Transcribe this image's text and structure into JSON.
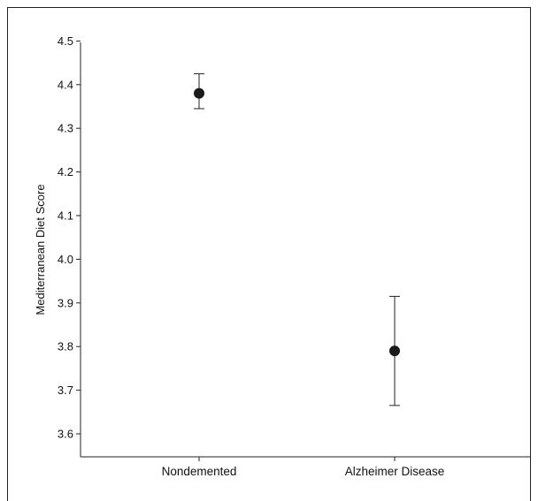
{
  "chart_data": {
    "type": "scatter",
    "title": "",
    "xlabel": "",
    "ylabel": "Mediterranean Diet Score",
    "categories": [
      "Nondemented",
      "Alzheimer Disease"
    ],
    "series": [
      {
        "values": [
          4.38,
          3.79
        ],
        "error_low": [
          4.345,
          3.665
        ],
        "error_high": [
          4.425,
          3.915
        ]
      }
    ],
    "ylim": [
      3.55,
      4.5
    ],
    "yticks": [
      3.6,
      3.7,
      3.8,
      3.9,
      4.0,
      4.1,
      4.2,
      4.3,
      4.4,
      4.5
    ],
    "ytick_labels": [
      "3.6",
      "3.7",
      "3.8",
      "3.9",
      "4.0",
      "4.1",
      "4.2",
      "4.3",
      "4.4",
      "4.5"
    ],
    "grid": false,
    "marker_color": "#1a1a1a",
    "line_color": "#222222"
  }
}
